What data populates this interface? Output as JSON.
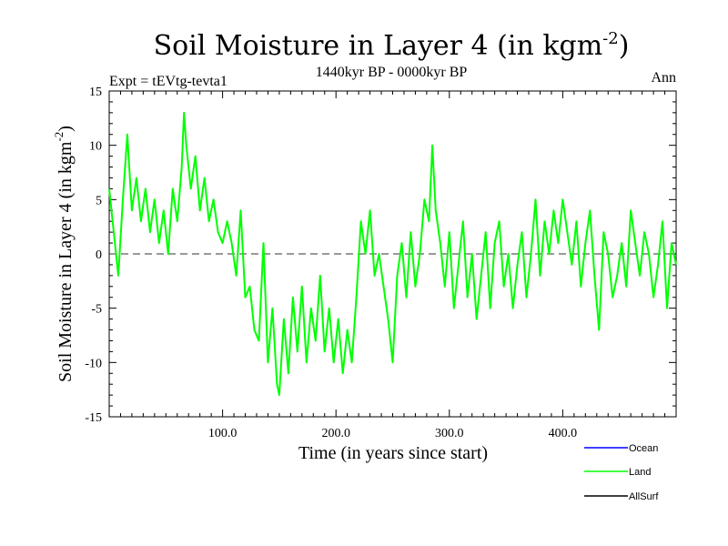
{
  "chart_data": {
    "type": "line",
    "title": "Soil Moisture in Layer 4 (in kgm",
    "title_superscript": "-2",
    "title_suffix": ")",
    "subtitle_left": "Expt = tEVtg-tevta1",
    "subtitle_center": "1440kyr BP - 0000kyr BP",
    "subtitle_right": "Ann",
    "xlabel": "Time (in years since start)",
    "ylabel": "Soil Moisture in Layer 4 (in kgm",
    "ylabel_superscript": "-2",
    "ylabel_suffix": ")",
    "xlim": [
      0,
      500
    ],
    "ylim": [
      -15,
      15
    ],
    "x_ticks": [
      100,
      200,
      300,
      400
    ],
    "x_tick_labels": [
      "100.0",
      "200.0",
      "300.0",
      "400.0"
    ],
    "y_ticks": [
      -15,
      -10,
      -5,
      0,
      5,
      10,
      15
    ],
    "y_tick_labels": [
      "-15",
      "-10",
      "-5",
      "0",
      "5",
      "10",
      "15"
    ],
    "zero_line": 0,
    "colors": {
      "ocean": "#0000ff",
      "land": "#00ff00",
      "allsurf": "#000000",
      "axis": "#000000"
    },
    "legend": [
      {
        "name": "Ocean",
        "color": "#0000ff"
      },
      {
        "name": "Land",
        "color": "#00ff00"
      },
      {
        "name": "AllSurf",
        "color": "#000000"
      }
    ],
    "series": [
      {
        "name": "Land",
        "color": "#00ff00",
        "x": [
          0,
          4,
          8,
          12,
          16,
          20,
          24,
          28,
          32,
          36,
          40,
          44,
          48,
          52,
          56,
          60,
          64,
          66,
          68,
          72,
          76,
          80,
          84,
          88,
          92,
          96,
          100,
          104,
          108,
          112,
          116,
          120,
          124,
          128,
          132,
          136,
          140,
          144,
          148,
          150,
          154,
          158,
          162,
          166,
          170,
          174,
          178,
          182,
          186,
          190,
          194,
          198,
          202,
          206,
          210,
          214,
          218,
          222,
          226,
          230,
          234,
          238,
          242,
          246,
          250,
          254,
          258,
          262,
          266,
          270,
          274,
          278,
          282,
          285,
          288,
          292,
          296,
          300,
          304,
          308,
          312,
          316,
          320,
          324,
          328,
          332,
          336,
          340,
          344,
          348,
          352,
          356,
          360,
          364,
          368,
          372,
          376,
          380,
          384,
          388,
          392,
          396,
          400,
          404,
          408,
          412,
          416,
          420,
          424,
          428,
          432,
          436,
          440,
          444,
          448,
          452,
          456,
          460,
          464,
          468,
          472,
          476,
          480,
          484,
          488,
          492,
          496,
          500
        ],
        "values": [
          6,
          2,
          -2,
          5,
          11,
          4,
          7,
          3,
          6,
          2,
          5,
          1,
          4,
          0,
          6,
          3,
          8,
          13,
          10,
          6,
          9,
          4,
          7,
          3,
          5,
          2,
          1,
          3,
          1,
          -2,
          4,
          -4,
          -3,
          -7,
          -8,
          1,
          -10,
          -5,
          -12,
          -13,
          -6,
          -11,
          -4,
          -9,
          -3,
          -10,
          -5,
          -8,
          -2,
          -9,
          -5,
          -10,
          -6,
          -11,
          -7,
          -10,
          -4,
          3,
          0,
          4,
          -2,
          0,
          -3,
          -6,
          -10,
          -2,
          1,
          -4,
          2,
          -3,
          0,
          5,
          3,
          10,
          4,
          1,
          -3,
          2,
          -5,
          -1,
          3,
          -4,
          0,
          -6,
          -2,
          2,
          -5,
          1,
          3,
          -3,
          0,
          -5,
          -1,
          2,
          -4,
          0,
          5,
          -2,
          3,
          0,
          4,
          1,
          5,
          2,
          -1,
          3,
          -3,
          1,
          4,
          -2,
          -7,
          2,
          0,
          -4,
          -2,
          1,
          -3,
          4,
          1,
          -2,
          2,
          0,
          -4,
          -1,
          3,
          -5,
          1,
          -1
        ]
      }
    ]
  }
}
